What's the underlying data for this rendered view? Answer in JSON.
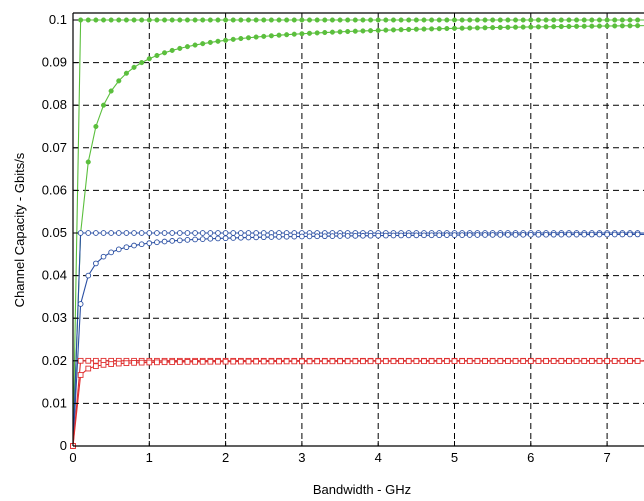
{
  "chart_data": {
    "type": "line",
    "xlabel": "Bandwidth - GHz",
    "ylabel": "Channel Capacity - Gbits/s",
    "xlim": [
      0,
      7.55
    ],
    "ylim": [
      0,
      0.1025
    ],
    "xticks": [
      0,
      1,
      2,
      3,
      4,
      5,
      6,
      7
    ],
    "yticks": [
      0,
      0.01,
      0.02,
      0.03,
      0.04,
      0.05,
      0.06,
      0.07,
      0.08,
      0.09,
      0.1
    ],
    "ytick_labels": [
      "0",
      "0.01",
      "0.02",
      "0.03",
      "0.04",
      "0.05",
      "0.06",
      "0.07",
      "0.08",
      "0.09",
      "0.1"
    ],
    "grid": true,
    "grid_style": "dashed",
    "x_step": 0.1,
    "series": [
      {
        "kind": "limit",
        "limit": 0.1,
        "scale": 0.0,
        "color": "#5bbf3d",
        "marker": "dot"
      },
      {
        "kind": "saturation",
        "limit": 0.1,
        "scale": 0.1,
        "color": "#5bbf3d",
        "marker": "dot"
      },
      {
        "kind": "limit",
        "limit": 0.05,
        "scale": 0.0,
        "color": "#2a4fa3",
        "marker": "open-circle"
      },
      {
        "kind": "saturation",
        "limit": 0.05,
        "scale": 0.05,
        "color": "#2a4fa3",
        "marker": "open-circle"
      },
      {
        "kind": "limit",
        "limit": 0.02,
        "scale": 0.0,
        "color": "#e03030",
        "marker": "open-square"
      },
      {
        "kind": "saturation",
        "limit": 0.02,
        "scale": 0.02,
        "color": "#e03030",
        "marker": "open-square"
      }
    ]
  }
}
